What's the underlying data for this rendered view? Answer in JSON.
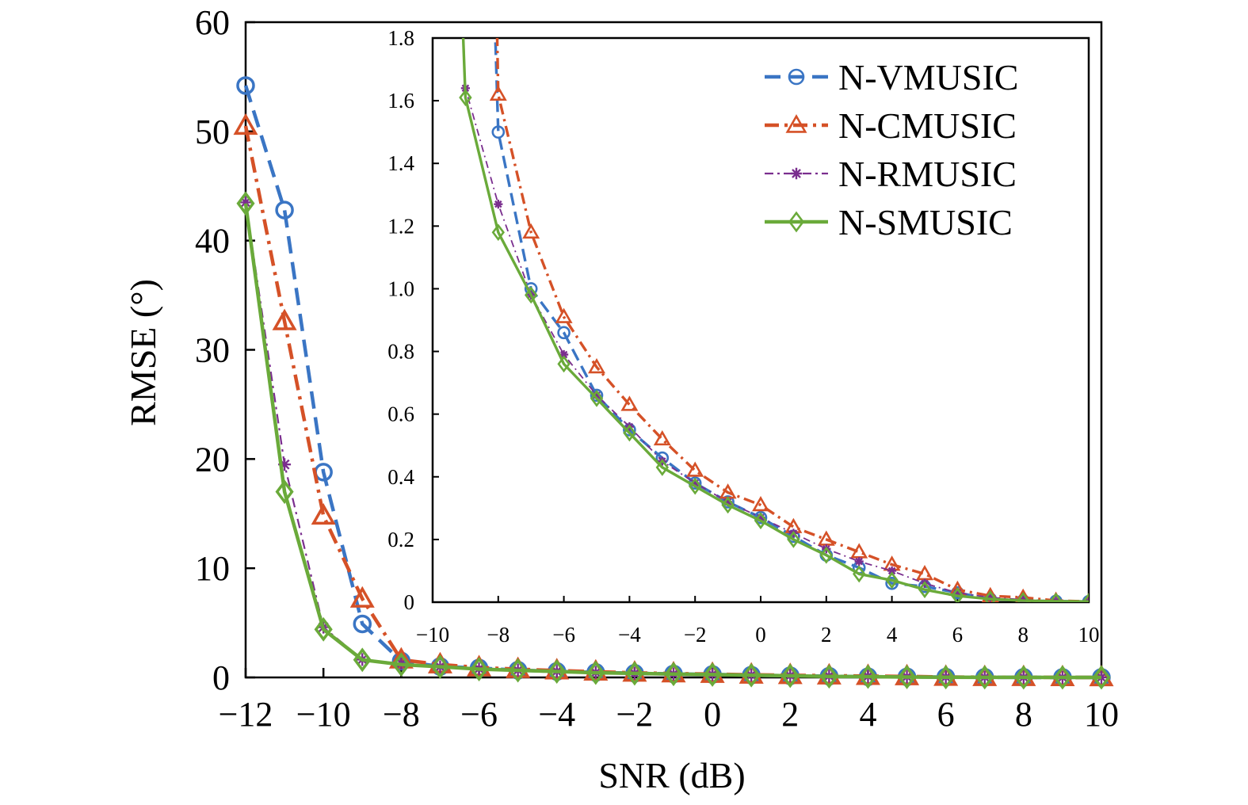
{
  "chart_data": {
    "type": "line",
    "title": "",
    "xlabel": "SNR (dB)",
    "ylabel": "RMSE (°)",
    "xlim": [
      -12,
      10
    ],
    "ylim": [
      0,
      60
    ],
    "x_ticks": [
      "−12",
      "−10",
      "−8",
      "−6",
      "−4",
      "−2",
      "0",
      "2",
      "4",
      "6",
      "8",
      "10"
    ],
    "y_ticks": [
      "0",
      "10",
      "20",
      "30",
      "40",
      "50",
      "60"
    ],
    "legend_position": "top-right",
    "grid": false,
    "x": [
      -12,
      -11,
      -10,
      -9,
      -8,
      -7,
      -6,
      -5,
      -4,
      -3,
      -2,
      -1,
      0,
      1,
      2,
      3,
      4,
      5,
      6,
      7,
      8,
      9,
      10
    ],
    "series": [
      {
        "name": "N-VMUSIC",
        "color": "#3a75c4",
        "line_style": "dashed",
        "marker": "circle",
        "values": [
          54.2,
          42.8,
          18.8,
          4.9,
          1.5,
          1.0,
          0.86,
          0.66,
          0.55,
          0.46,
          0.38,
          0.32,
          0.27,
          0.21,
          0.15,
          0.11,
          0.06,
          0.05,
          0.03,
          0.01,
          0.005,
          0.003,
          0.002
        ]
      },
      {
        "name": "N-CMUSIC",
        "color": "#d55127",
        "line_style": "dash-dot",
        "marker": "triangle",
        "values": [
          50.5,
          32.6,
          14.8,
          7.2,
          1.62,
          1.18,
          0.91,
          0.75,
          0.63,
          0.52,
          0.42,
          0.35,
          0.31,
          0.24,
          0.2,
          0.16,
          0.12,
          0.09,
          0.04,
          0.02,
          0.015,
          0.005,
          0.002
        ]
      },
      {
        "name": "N-RMUSIC",
        "color": "#7a2e8e",
        "line_style": "dash-dot-thin",
        "marker": "asterisk",
        "values": [
          43.5,
          19.5,
          4.6,
          1.64,
          1.27,
          0.98,
          0.79,
          0.66,
          0.56,
          0.45,
          0.38,
          0.32,
          0.27,
          0.22,
          0.17,
          0.13,
          0.1,
          0.06,
          0.03,
          0.015,
          0.008,
          0.004,
          0.002
        ]
      },
      {
        "name": "N-SMUSIC",
        "color": "#6aaa3a",
        "line_style": "solid",
        "marker": "diamond",
        "values": [
          43.4,
          17.0,
          4.4,
          1.61,
          1.18,
          0.98,
          0.76,
          0.65,
          0.54,
          0.43,
          0.37,
          0.31,
          0.26,
          0.2,
          0.15,
          0.09,
          0.07,
          0.04,
          0.02,
          0.01,
          0.005,
          0.003,
          0.002
        ]
      }
    ],
    "inset": {
      "type": "line",
      "xlim": [
        -10,
        10
      ],
      "ylim": [
        0,
        1.8
      ],
      "x_ticks": [
        "−10",
        "−8",
        "−6",
        "−4",
        "−2",
        "0",
        "2",
        "4",
        "6",
        "8",
        "10"
      ],
      "y_ticks": [
        "0",
        "0.2",
        "0.4",
        "0.6",
        "0.8",
        "1.0",
        "1.2",
        "1.4",
        "1.6",
        "1.8"
      ],
      "series_ref": "same as main series"
    }
  }
}
